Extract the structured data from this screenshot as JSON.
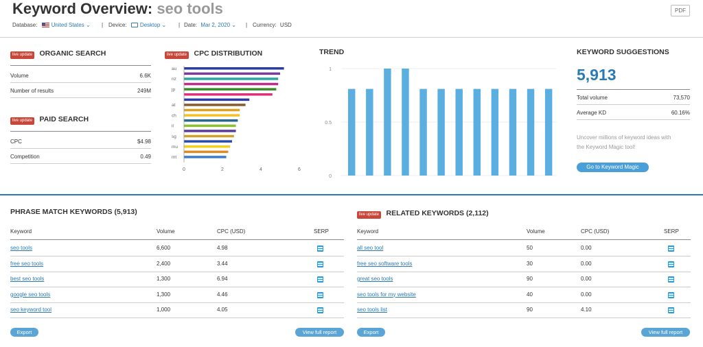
{
  "header": {
    "title_prefix": "Keyword Overview:",
    "title_keyword": "seo tools",
    "pdf_label": "PDF",
    "database_label": "Database:",
    "database_value": "United States",
    "device_label": "Device:",
    "device_value": "Desktop",
    "date_label": "Date:",
    "date_value": "Mar 2, 2020",
    "currency_label": "Currency:",
    "currency_value": "USD"
  },
  "badge_label": "live update",
  "organic": {
    "title": "ORGANIC SEARCH",
    "rows": [
      {
        "label": "Volume",
        "value": "6.6K"
      },
      {
        "label": "Number of results",
        "value": "249M"
      }
    ]
  },
  "paid": {
    "title": "PAID SEARCH",
    "rows": [
      {
        "label": "CPC",
        "value": "$4.98"
      },
      {
        "label": "Competition",
        "value": "0.49"
      }
    ]
  },
  "cpc": {
    "title": "CPC DISTRIBUTION",
    "chart_data": {
      "type": "bar",
      "orientation": "horizontal",
      "categories": [
        "au",
        "",
        "nz",
        "",
        "jp",
        "",
        "",
        "at",
        "",
        "ch",
        "",
        "il",
        "",
        "sg",
        "",
        "mu",
        "",
        "mt"
      ],
      "values": [
        5.2,
        5.0,
        4.9,
        4.9,
        4.8,
        4.6,
        3.4,
        3.2,
        2.9,
        2.9,
        2.8,
        2.7,
        2.7,
        2.6,
        2.5,
        2.4,
        2.3,
        2.2
      ],
      "colors": [
        "#2a3d9a",
        "#7c3a9a",
        "#2aa5a0",
        "#c22a8a",
        "#3a8a2a",
        "#e0307a",
        "#2a3aa8",
        "#8a5a2a",
        "#e0a020",
        "#f2c22a",
        "#2a6a8a",
        "#8ac22a",
        "#5a3a9a",
        "#d0a02a",
        "#2a4aa8",
        "#f0d020",
        "#e08a20",
        "#3a7ad0"
      ],
      "xticks": [
        "0",
        "2",
        "4",
        "6"
      ],
      "xlim": [
        0,
        6
      ]
    }
  },
  "trend": {
    "title": "TREND",
    "chart_data": {
      "type": "bar",
      "values": [
        0.81,
        0.81,
        1.0,
        1.0,
        0.81,
        0.81,
        0.81,
        0.81,
        0.81,
        0.81,
        0.81,
        0.81
      ],
      "yticks": [
        "1",
        "0.5",
        "0"
      ],
      "ylim": [
        0,
        1
      ]
    }
  },
  "suggestions": {
    "title": "KEYWORD SUGGESTIONS",
    "count": "5,913",
    "rows": [
      {
        "label": "Total volume",
        "value": "73,570"
      },
      {
        "label": "Average KD",
        "value": "60.16%"
      }
    ],
    "text1": "Uncover millions of keyword ideas with",
    "text2": "the Keyword Magic tool!",
    "button": "Go to Keyword Magic"
  },
  "phrase": {
    "title": "PHRASE MATCH KEYWORDS (5,913)",
    "headers": [
      "Keyword",
      "Volume",
      "CPC (USD)",
      "SERP"
    ],
    "rows": [
      {
        "keyword": "seo tools",
        "volume": "6,600",
        "cpc": "4.98"
      },
      {
        "keyword": "free seo tools",
        "volume": "2,400",
        "cpc": "3.44"
      },
      {
        "keyword": "best seo tools",
        "volume": "1,300",
        "cpc": "6.94"
      },
      {
        "keyword": "google seo tools",
        "volume": "1,300",
        "cpc": "4.46"
      },
      {
        "keyword": "seo keyword tool",
        "volume": "1,000",
        "cpc": "4.05"
      }
    ],
    "export": "Export",
    "view_full": "View full report"
  },
  "related": {
    "title": "RELATED KEYWORDS (2,112)",
    "headers": [
      "Keyword",
      "Volume",
      "CPC (USD)",
      "SERP"
    ],
    "rows": [
      {
        "keyword": "all seo tool",
        "volume": "50",
        "cpc": "0.00"
      },
      {
        "keyword": "free seo software tools",
        "volume": "30",
        "cpc": "0.00"
      },
      {
        "keyword": "great seo tools",
        "volume": "90",
        "cpc": "0.00"
      },
      {
        "keyword": "seo tools for my website",
        "volume": "40",
        "cpc": "0.00"
      },
      {
        "keyword": "seo tools list",
        "volume": "90",
        "cpc": "4.10"
      }
    ],
    "export": "Export",
    "view_full": "View full report"
  },
  "colors": {
    "accent": "#2a7ab6",
    "badge": "#c7483a",
    "trend_bar": "#5aaee0"
  }
}
